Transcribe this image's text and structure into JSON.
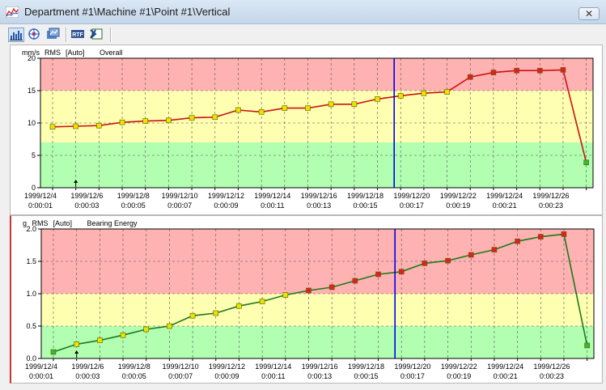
{
  "window": {
    "title": "Department #1\\Machine #1\\Point #1\\Vertical",
    "close_glyph": "✕"
  },
  "toolbar": {
    "buttons": [
      {
        "name": "trend-chart-icon",
        "active": true
      },
      {
        "name": "spectrum-icon",
        "active": false
      },
      {
        "name": "settings-icon",
        "active": false
      },
      {
        "name": "rtf-export-icon",
        "active": false
      },
      {
        "name": "excel-export-icon",
        "active": false
      }
    ]
  },
  "x_ticks": [
    {
      "date": "1999/12/4",
      "time": "0:00:01"
    },
    {
      "date": "1999/12/6",
      "time": "0:00:03"
    },
    {
      "date": "1999/12/8",
      "time": "0:00:05"
    },
    {
      "date": "1999/12/10",
      "time": "0:00:07"
    },
    {
      "date": "1999/12/12",
      "time": "0:00:09"
    },
    {
      "date": "1999/12/14",
      "time": "0:00:11"
    },
    {
      "date": "1999/12/16",
      "time": "0:00:13"
    },
    {
      "date": "1999/12/18",
      "time": "0:00:15"
    },
    {
      "date": "1999/12/20",
      "time": "0:00:17"
    },
    {
      "date": "1999/12/22",
      "time": "0:00:19"
    },
    {
      "date": "1999/12/24",
      "time": "0:00:21"
    },
    {
      "date": "1999/12/26",
      "time": "0:00:23"
    }
  ],
  "chart_data": [
    {
      "type": "line",
      "header": {
        "unit": "mm/s",
        "measure": "RMS",
        "scale": "[Auto]",
        "name": "Overall"
      },
      "ylim": [
        0,
        20
      ],
      "yticks": [
        "0",
        "5",
        "10",
        "15",
        "20"
      ],
      "bands": [
        {
          "from": 0,
          "to": 7,
          "color": "#b2ffb2"
        },
        {
          "from": 7,
          "to": 15,
          "color": "#ffffb2"
        },
        {
          "from": 15,
          "to": 20,
          "color": "#ffb2b2"
        }
      ],
      "cursor_index": 15,
      "line_color": "#cc1111",
      "values": [
        9.4,
        9.5,
        9.6,
        10.1,
        10.3,
        10.4,
        10.8,
        10.9,
        12.0,
        11.7,
        12.3,
        12.3,
        12.9,
        12.9,
        13.7,
        14.2,
        14.6,
        14.8,
        17.1,
        17.8,
        18.1,
        18.1,
        18.2,
        3.9
      ],
      "marker_colors": [
        "#e6e600",
        "#e6e600",
        "#e6e600",
        "#e6e600",
        "#e6e600",
        "#e6e600",
        "#e6e600",
        "#e6e600",
        "#e6e600",
        "#e6e600",
        "#e6e600",
        "#e6e600",
        "#e6e600",
        "#e6e600",
        "#e6e600",
        "#e6e600",
        "#e6e600",
        "#e6e600",
        "#dd2222",
        "#dd2222",
        "#dd2222",
        "#dd2222",
        "#dd2222",
        "#33bb33"
      ]
    },
    {
      "type": "line",
      "header": {
        "unit": "g",
        "measure": "RMS",
        "scale": "[Auto]",
        "name": "Bearing Energy"
      },
      "ylim": [
        0,
        2
      ],
      "yticks": [
        "0.0",
        "0.5",
        "1.0",
        "1.5",
        "2.0"
      ],
      "bands": [
        {
          "from": 0,
          "to": 0.5,
          "color": "#b2ffb2"
        },
        {
          "from": 0.5,
          "to": 1.0,
          "color": "#ffffb2"
        },
        {
          "from": 1.0,
          "to": 2.0,
          "color": "#ffb2b2"
        }
      ],
      "cursor_index": 15,
      "line_color": "#1a7a1a",
      "values": [
        0.1,
        0.22,
        0.28,
        0.36,
        0.45,
        0.5,
        0.66,
        0.7,
        0.81,
        0.88,
        0.98,
        1.05,
        1.1,
        1.2,
        1.3,
        1.34,
        1.47,
        1.51,
        1.6,
        1.68,
        1.81,
        1.88,
        1.92,
        0.2
      ],
      "marker_colors": [
        "#33bb33",
        "#e6e600",
        "#e6e600",
        "#e6e600",
        "#e6e600",
        "#e6e600",
        "#e6e600",
        "#e6e600",
        "#e6e600",
        "#e6e600",
        "#e6e600",
        "#dd2222",
        "#dd2222",
        "#dd2222",
        "#dd2222",
        "#dd2222",
        "#dd2222",
        "#dd2222",
        "#dd2222",
        "#dd2222",
        "#dd2222",
        "#dd2222",
        "#dd2222",
        "#33bb33"
      ]
    }
  ]
}
